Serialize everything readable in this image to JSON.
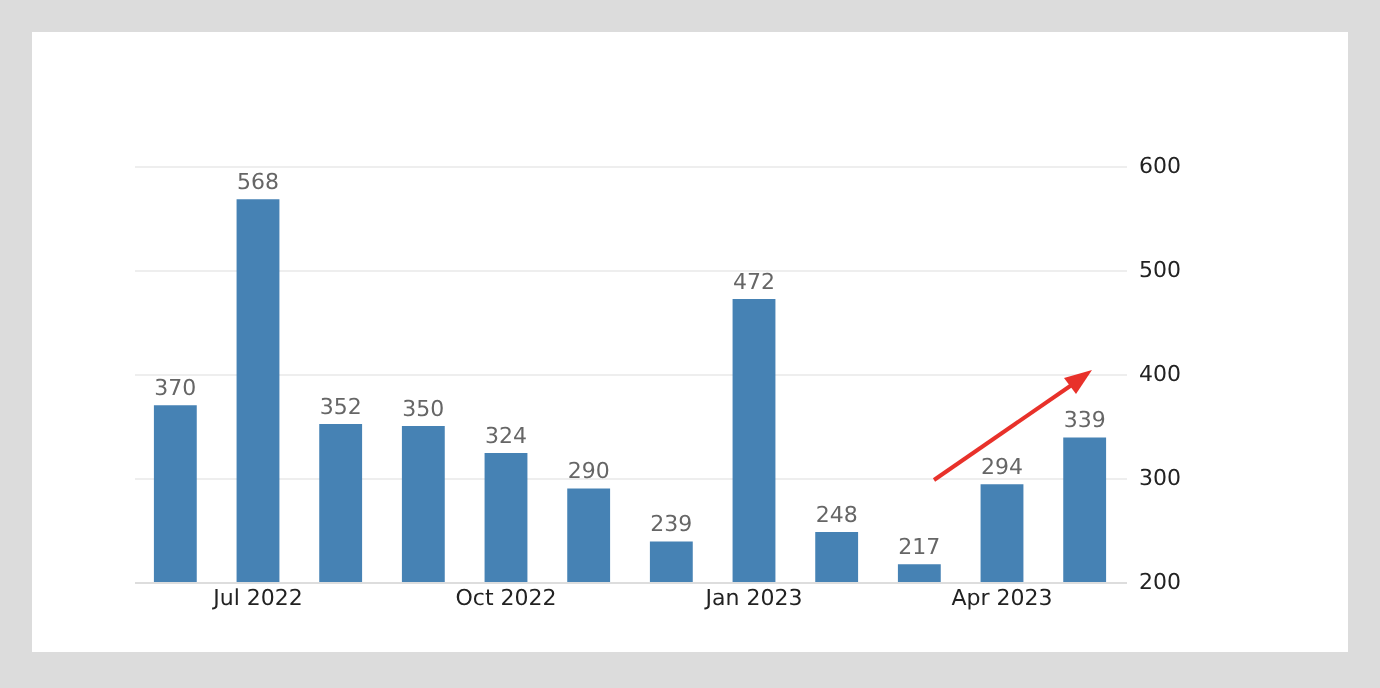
{
  "chart_data": {
    "type": "bar",
    "categories": [
      null,
      "Jul 2022",
      null,
      null,
      "Oct 2022",
      null,
      null,
      "Jan 2023",
      null,
      null,
      "Apr 2023",
      null
    ],
    "values": [
      370,
      568,
      352,
      350,
      324,
      290,
      239,
      472,
      248,
      217,
      294,
      339
    ],
    "color": "#4682b4",
    "ylim": [
      200,
      600
    ],
    "yticks": [
      200,
      300,
      400,
      500,
      600
    ],
    "grid": "y",
    "data_labels": true
  }
}
